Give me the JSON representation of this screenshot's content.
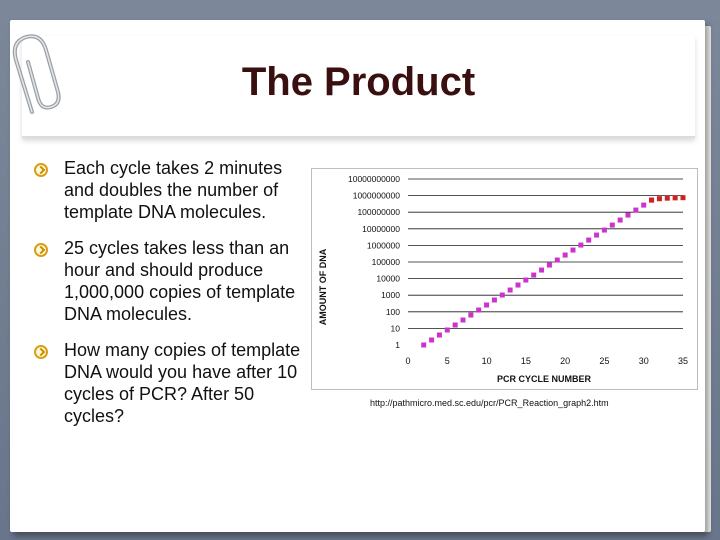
{
  "slide": {
    "title": "The Product",
    "bullets": [
      "Each cycle takes 2 minutes and doubles the number of template DNA molecules.",
      "25 cycles takes less than an hour and should produce 1,000,000 copies of template DNA molecules.",
      "How many copies of template DNA would you have after 10 cycles of PCR?  After 50 cycles?"
    ],
    "source_url": "http://pathmicro.med.sc.edu/pcr/PCR_Reaction_graph2.htm",
    "colors": {
      "title": "#3a0f0f",
      "bullet_icon": "#d6a015",
      "series_exponential": "#cc33cc",
      "series_plateau": "#cc2222",
      "gridline": "#1a1a1a"
    },
    "icons": [
      "paperclip-icon",
      "bullet-chevron-icon"
    ]
  },
  "chart_data": {
    "type": "scatter",
    "xlabel": "PCR CYCLE NUMBER",
    "ylabel": "AMOUNT OF DNA",
    "xlim": [
      0,
      35
    ],
    "x_ticks": [
      "0",
      "5",
      "10",
      "15",
      "20",
      "25",
      "30",
      "35"
    ],
    "y_scale": "log",
    "y_ticks": [
      "1",
      "10",
      "100",
      "1000",
      "10000",
      "100000",
      "1000000",
      "10000000",
      "100000000",
      "1000000000",
      "10000000000"
    ],
    "grid": "horizontal",
    "series": [
      {
        "x": [
          2,
          3,
          4,
          5,
          6,
          7,
          8,
          9,
          10,
          11,
          12,
          13,
          14,
          15,
          16,
          17,
          18,
          19,
          20,
          21,
          22,
          23,
          24,
          25,
          26,
          27,
          28,
          29,
          30,
          31
        ],
        "y": [
          1,
          2,
          4,
          8,
          16,
          32,
          64,
          128,
          256,
          512,
          1024,
          2048,
          4096,
          8192,
          16384,
          32768,
          65536,
          131072,
          262144,
          524288,
          1048576,
          2097152,
          4194304,
          8388608,
          16777216,
          33554432,
          67108864,
          134217728,
          268435456,
          536870912
        ],
        "color": "#cc33cc"
      },
      {
        "x": [
          31,
          32,
          33,
          34,
          35
        ],
        "y": [
          536870912,
          650000000,
          700000000,
          730000000,
          750000000
        ],
        "color": "#cc2222"
      }
    ]
  }
}
